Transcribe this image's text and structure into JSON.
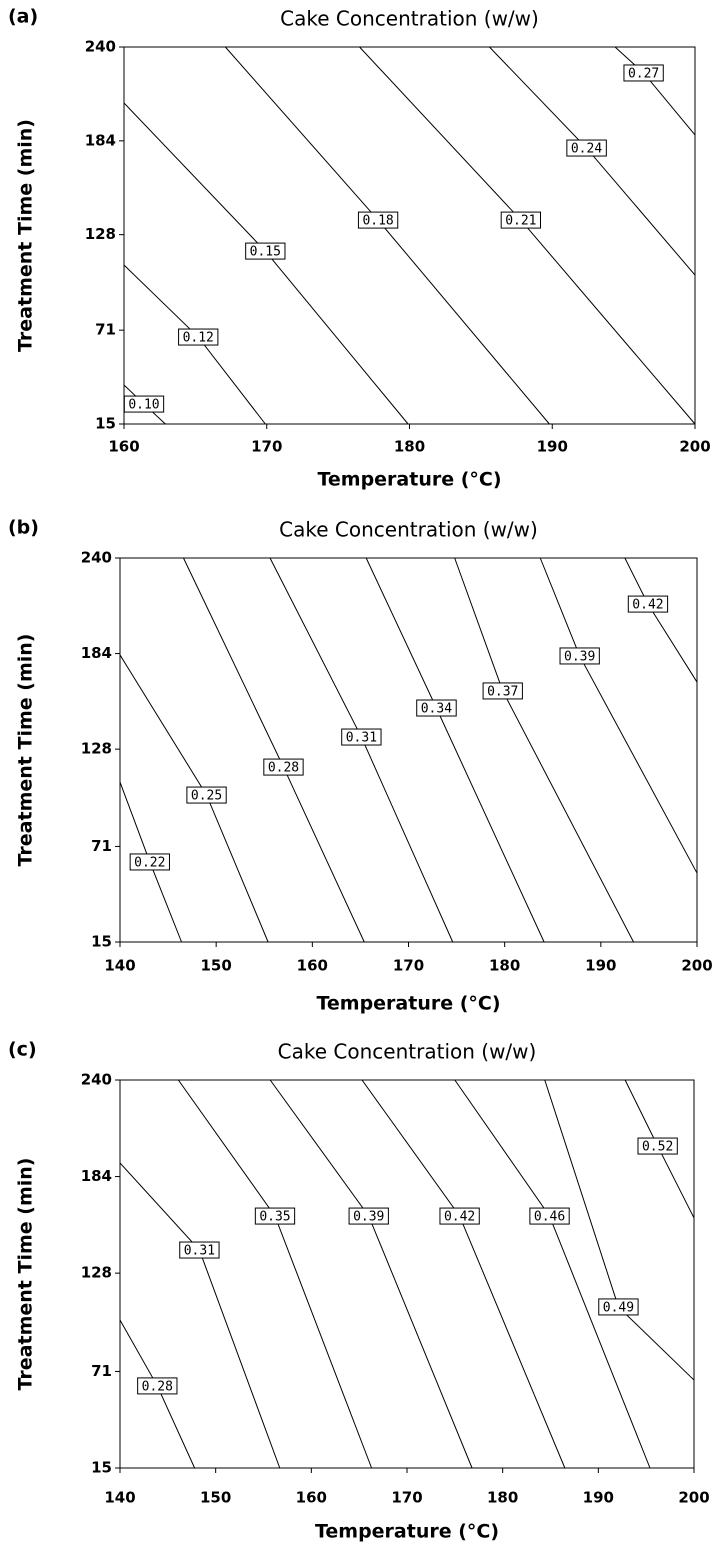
{
  "chart_data": [
    {
      "type": "contour",
      "panel": "(a)",
      "title": "Cake Concentration (w/w)",
      "x_label": "Temperature (°C)",
      "y_label": "Treatment Time (min)",
      "xlim": [
        160,
        200
      ],
      "xticks": [
        160,
        170,
        180,
        190,
        200
      ],
      "ylim": [
        15,
        240
      ],
      "yticks": [
        15,
        71,
        128,
        184,
        240
      ],
      "levels": [
        {
          "value": 0.1,
          "label": "0.10"
        },
        0.12,
        0.15,
        0.18,
        0.21,
        0.24,
        0.27
      ],
      "contours": [
        {
          "x": [
            160,
            161.4,
            162.9
          ],
          "y": [
            38.3,
            26.9,
            15
          ]
        },
        {
          "x": [
            160,
            165.2,
            169.9
          ],
          "y": [
            109.9,
            66.9,
            15
          ]
        },
        {
          "x": [
            160,
            169.9,
            179.9
          ],
          "y": [
            206.6,
            118.2,
            15
          ]
        },
        {
          "x": [
            167.1,
            177.8,
            189.8
          ],
          "y": [
            240,
            136.7,
            15
          ]
        },
        {
          "x": [
            176.5,
            187.8,
            200
          ],
          "y": [
            240,
            136.7,
            15
          ]
        },
        {
          "x": [
            185.6,
            192.4,
            200
          ],
          "y": [
            240,
            179.7,
            103.9
          ]
        },
        {
          "x": [
            194.4,
            196.4,
            200
          ],
          "y": [
            240,
            224.5,
            187.5
          ]
        }
      ]
    },
    {
      "type": "contour",
      "panel": "(b)",
      "title": "Cake Concentration (w/w)",
      "x_label": "Temperature (°C)",
      "y_label": "Treatment Time (min)",
      "xlim": [
        140,
        200
      ],
      "xticks": [
        140,
        150,
        160,
        170,
        180,
        190,
        200
      ],
      "ylim": [
        15,
        240
      ],
      "yticks": [
        15,
        71,
        128,
        184,
        240
      ],
      "levels": [
        0.22,
        0.25,
        0.28,
        0.31,
        0.34,
        0.37,
        0.39,
        0.42
      ],
      "contours": [
        {
          "x": [
            140,
            143.1,
            146.4
          ],
          "y": [
            108.7,
            61.9,
            15
          ]
        },
        {
          "x": [
            140,
            149.0,
            155.4
          ],
          "y": [
            183.2,
            101.1,
            15
          ]
        },
        {
          "x": [
            146.6,
            157.0,
            165.4
          ],
          "y": [
            240,
            117.5,
            15
          ]
        },
        {
          "x": [
            155.6,
            165.1,
            174.6
          ],
          "y": [
            240,
            135.1,
            15
          ]
        },
        {
          "x": [
            165.6,
            172.9,
            184.1
          ],
          "y": [
            240,
            152.1,
            15
          ]
        },
        {
          "x": [
            174.8,
            179.8,
            193.4
          ],
          "y": [
            240,
            162.1,
            15
          ]
        },
        {
          "x": [
            183.7,
            187.8,
            200
          ],
          "y": [
            240,
            182.6,
            55.4
          ]
        },
        {
          "x": [
            192.5,
            194.9,
            200
          ],
          "y": [
            240,
            213.0,
            167.3
          ]
        }
      ]
    },
    {
      "type": "contour",
      "panel": "(c)",
      "title": "Cake Concentration (w/w)",
      "x_label": "Temperature (°C)",
      "y_label": "Treatment Time (min)",
      "xlim": [
        140,
        200
      ],
      "xticks": [
        140,
        150,
        160,
        170,
        180,
        190,
        200
      ],
      "ylim": [
        15,
        240
      ],
      "yticks": [
        15,
        71,
        128,
        184,
        240
      ],
      "levels": [
        0.28,
        0.31,
        0.35,
        0.39,
        0.42,
        0.46,
        0.49,
        0.52
      ],
      "contours": [
        {
          "x": [
            140,
            143.9,
            147.8
          ],
          "y": [
            100.8,
            62.6,
            15
          ]
        },
        {
          "x": [
            140,
            148.3,
            156.7
          ],
          "y": [
            191.9,
            141.4,
            15
          ]
        },
        {
          "x": [
            146.1,
            156.2,
            166.3
          ],
          "y": [
            240,
            161.1,
            15
          ]
        },
        {
          "x": [
            155.7,
            166.0,
            176.8
          ],
          "y": [
            240,
            161.1,
            15
          ]
        },
        {
          "x": [
            165.3,
            175.5,
            186.5
          ],
          "y": [
            240,
            161.1,
            15
          ]
        },
        {
          "x": [
            175.0,
            184.9,
            195.4
          ],
          "y": [
            240,
            161.1,
            15
          ]
        },
        {
          "x": [
            184.4,
            192.1,
            200
          ],
          "y": [
            240,
            108.4,
            66.0
          ]
        },
        {
          "x": [
            192.8,
            196.2,
            200
          ],
          "y": [
            240,
            201.7,
            160.0
          ]
        }
      ]
    }
  ]
}
